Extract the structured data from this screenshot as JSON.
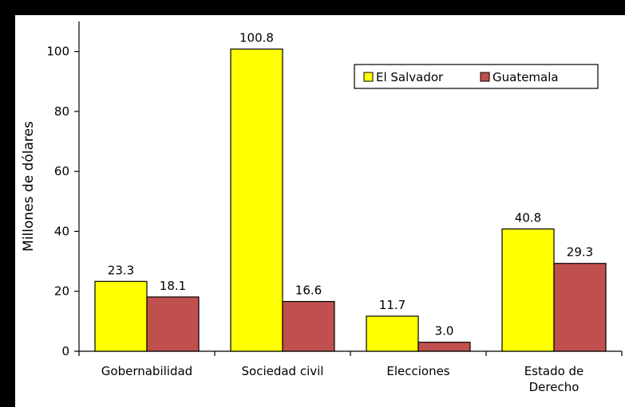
{
  "chart_data": {
    "type": "bar",
    "categories": [
      [
        "Gobernabilidad"
      ],
      [
        "Sociedad civil"
      ],
      [
        "Elecciones"
      ],
      [
        "Estado de",
        "Derecho"
      ]
    ],
    "series": [
      {
        "name": "El Salvador",
        "values": [
          23.3,
          100.8,
          11.7,
          40.8
        ],
        "labels": [
          "23.3",
          "100.8",
          "11.7",
          "40.8"
        ],
        "color": "#ffff00"
      },
      {
        "name": "Guatemala",
        "values": [
          18.1,
          16.6,
          3.0,
          29.3
        ],
        "labels": [
          "18.1",
          "16.6",
          "3.0",
          "29.3"
        ],
        "color": "#c0504d"
      }
    ],
    "ylabel": "Millones de dólares",
    "xlabel": "",
    "ylim": [
      0,
      110
    ],
    "yticks": [
      0,
      20,
      40,
      60,
      80,
      100
    ],
    "grid": false,
    "legend_position": "top-right"
  }
}
